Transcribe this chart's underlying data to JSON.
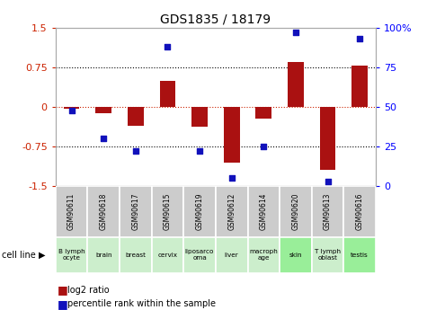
{
  "title": "GDS1835 / 18179",
  "gsm_labels": [
    "GSM90611",
    "GSM90618",
    "GSM90617",
    "GSM90615",
    "GSM90619",
    "GSM90612",
    "GSM90614",
    "GSM90620",
    "GSM90613",
    "GSM90616"
  ],
  "cell_labels": [
    "B lymph\nocyte",
    "brain",
    "breast",
    "cervix",
    "liposarco\noma",
    "liver",
    "macroph\nage",
    "skin",
    "T lymph\noblast",
    "testis"
  ],
  "cell_bg_colors": [
    "#cceecc",
    "#cceecc",
    "#cceecc",
    "#cceecc",
    "#cceecc",
    "#cceecc",
    "#cceecc",
    "#99ee99",
    "#cceecc",
    "#99ee99"
  ],
  "log2_ratio": [
    -0.04,
    -0.12,
    -0.35,
    0.5,
    -0.38,
    -1.05,
    -0.22,
    0.85,
    -1.2,
    0.78
  ],
  "percentile_rank": [
    48,
    30,
    22,
    88,
    22,
    5,
    25,
    97,
    3,
    93
  ],
  "ylim_left": [
    -1.5,
    1.5
  ],
  "yticks_left": [
    -1.5,
    -0.75,
    0,
    0.75,
    1.5
  ],
  "ytick_labels_left": [
    "-1.5",
    "-0.75",
    "0",
    "0.75",
    "1.5"
  ],
  "ylim_right": [
    0,
    100
  ],
  "yticks_right": [
    0,
    25,
    50,
    75,
    100
  ],
  "ytick_labels_right": [
    "0",
    "25",
    "50",
    "75",
    "100%"
  ],
  "bar_color": "#aa1111",
  "dot_color": "#1111bb",
  "bar_width": 0.5,
  "hline_dotted_vals": [
    -0.75,
    0.75
  ],
  "hline_red_val": 0,
  "legend_bar_label": "log2 ratio",
  "legend_dot_label": "percentile rank within the sample",
  "cell_line_label": "cell line"
}
